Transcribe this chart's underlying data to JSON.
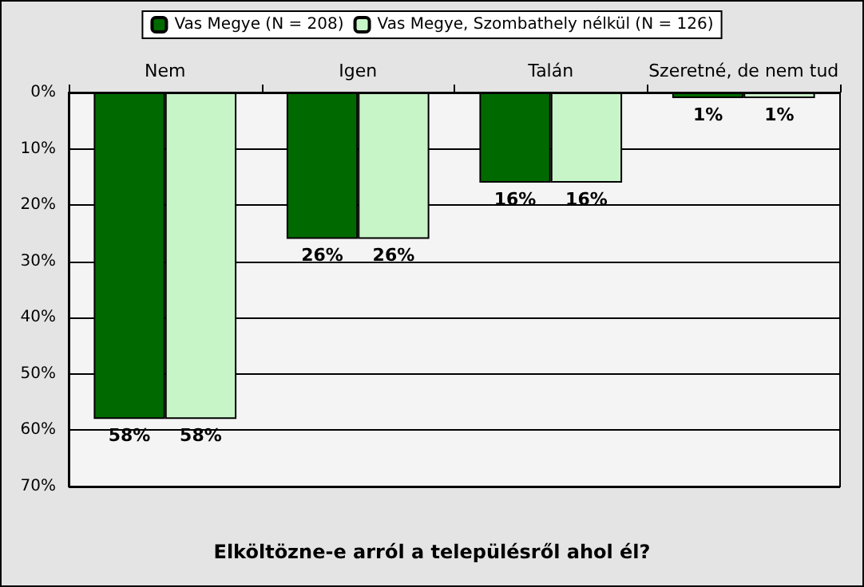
{
  "chart_data": {
    "type": "bar",
    "title": "Elköltözne-e arról a településről ahol él?",
    "categories": [
      "Nem",
      "Igen",
      "Talán",
      "Szeretné, de nem tud"
    ],
    "series": [
      {
        "name": "Vas Megye (N = 208)",
        "color": "#006a00",
        "values": [
          58,
          26,
          16,
          1
        ]
      },
      {
        "name": "Vas Megye, Szombathely nélkül (N = 126)",
        "color": "#c8f5c8",
        "values": [
          58,
          26,
          16,
          1
        ]
      }
    ],
    "ylim": [
      70,
      0
    ],
    "yticks": [
      {
        "value": 0,
        "label": "0%"
      },
      {
        "value": 10,
        "label": "10%"
      },
      {
        "value": 20,
        "label": "20%"
      },
      {
        "value": 30,
        "label": "30%"
      },
      {
        "value": 40,
        "label": "40%"
      },
      {
        "value": 50,
        "label": "50%"
      },
      {
        "value": 60,
        "label": "60%"
      },
      {
        "value": 70,
        "label": "70%"
      }
    ],
    "value_labels": [
      [
        "58%",
        "26%",
        "16%",
        "1%"
      ],
      [
        "58%",
        "26%",
        "16%",
        "1%"
      ]
    ],
    "grid": "y",
    "legend": "top"
  }
}
